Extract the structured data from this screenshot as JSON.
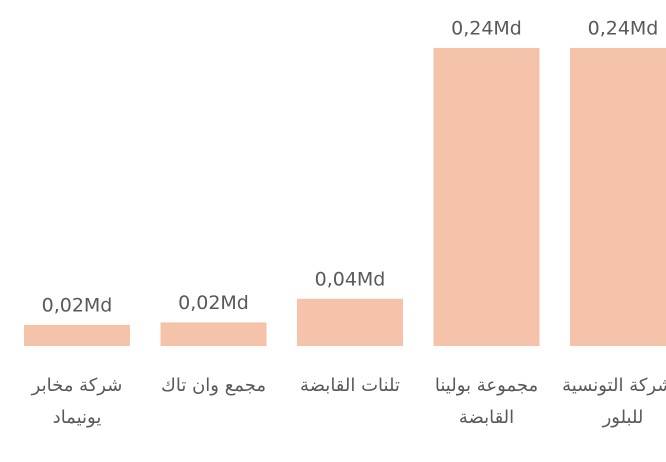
{
  "chart_data": {
    "type": "bar",
    "categories": [
      "شركة مخابر يونيماد",
      "مجمع وان تاك",
      "تلنات القابضة",
      "مجموعة بولينا القابضة",
      "الشركة التونسية للبلور"
    ],
    "values": [
      0.017,
      0.019,
      0.038,
      0.24,
      0.24
    ],
    "value_labels": [
      "0,02Md",
      "0,02Md",
      "0,04Md",
      "0,24Md",
      "0,24Md"
    ],
    "color": "#f5c3a9"
  }
}
